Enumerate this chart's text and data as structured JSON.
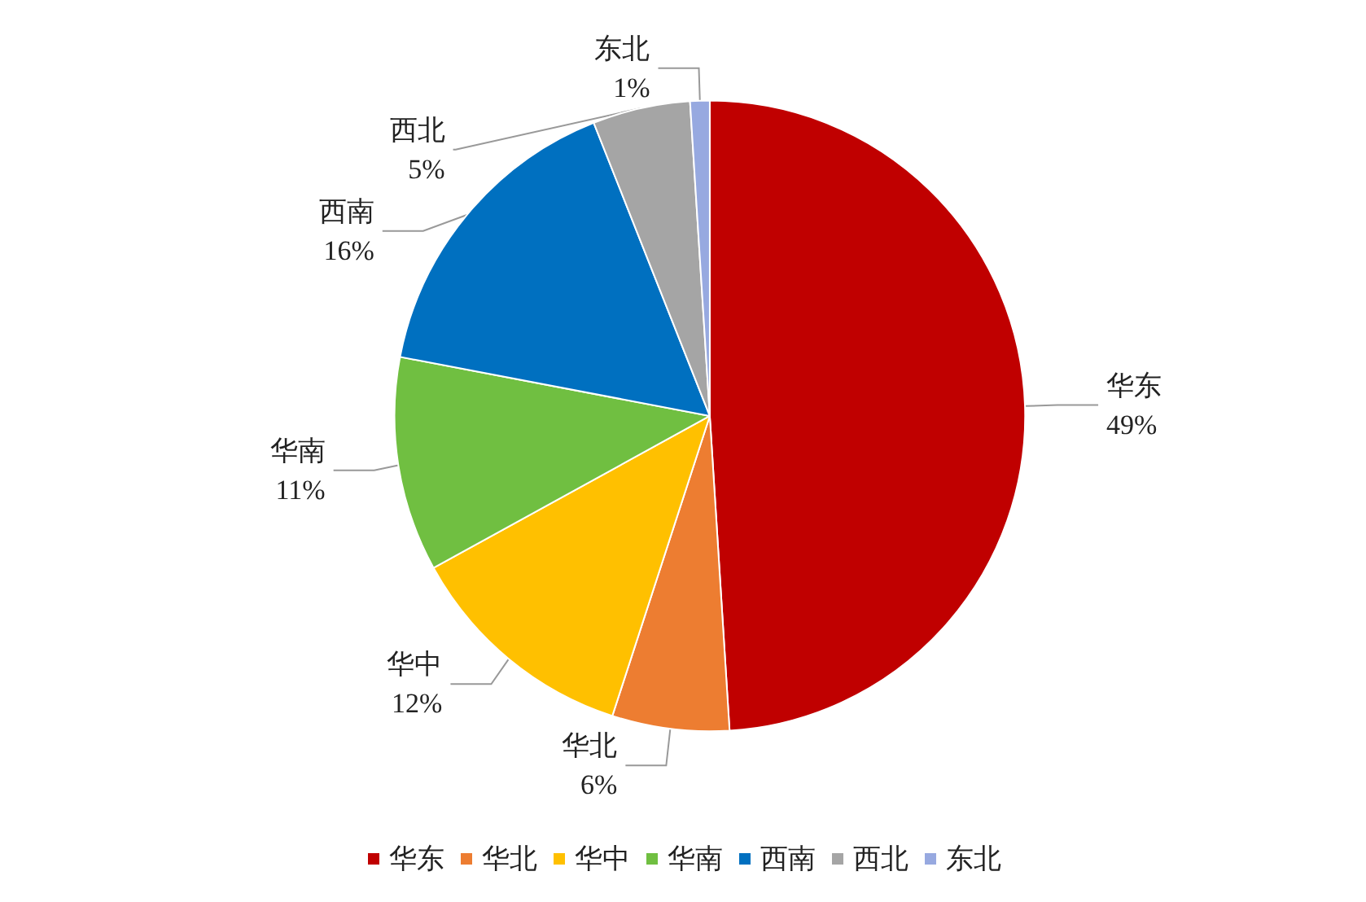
{
  "chart_data": {
    "type": "pie",
    "categories": [
      "华东",
      "华北",
      "华中",
      "华南",
      "西南",
      "西北",
      "东北"
    ],
    "values": [
      49,
      6,
      12,
      11,
      16,
      5,
      1
    ],
    "colors": [
      "#c00000",
      "#ed7d31",
      "#ffc000",
      "#70bf41",
      "#0070c0",
      "#a5a5a5",
      "#97a9e0"
    ],
    "value_labels": [
      "49%",
      "6%",
      "12%",
      "11%",
      "16%",
      "5%",
      "1%"
    ],
    "legend": "bottom"
  }
}
